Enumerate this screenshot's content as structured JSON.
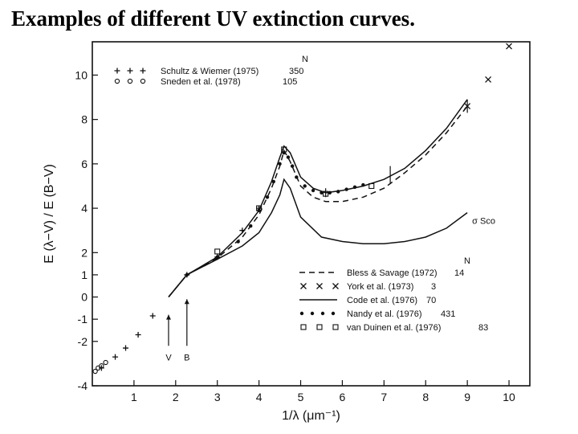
{
  "slide": {
    "title": "Examples of different UV extinction curves."
  },
  "chart_data": {
    "type": "line",
    "xlabel": "1/λ (μm⁻¹)",
    "ylabel": "E (λ−V) / E (B−V)",
    "xlim": [
      0,
      10.5
    ],
    "ylim": [
      -4,
      11.5
    ],
    "x_ticks": [
      1,
      2,
      3,
      4,
      5,
      6,
      7,
      8,
      9,
      10
    ],
    "y_ticks": [
      -4,
      -2,
      -1,
      0,
      1,
      2,
      4,
      6,
      8,
      10
    ],
    "legend_top": {
      "header": "N",
      "entries": [
        {
          "marker": "+ + +",
          "label": "Schultz & Wiemer (1975)",
          "n": "350"
        },
        {
          "marker": "o o o",
          "label": "Sneden et al. (1978)",
          "n": "105"
        }
      ]
    },
    "legend_bottom": {
      "header": "N",
      "entries": [
        {
          "marker": "dashed",
          "label": "Bless & Savage (1972)",
          "n": "14"
        },
        {
          "marker": "x x x",
          "label": "York et al. (1973)",
          "n": "3"
        },
        {
          "marker": "solid",
          "label": "Code et al. (1976)",
          "n": "70"
        },
        {
          "marker": "dots",
          "label": "Nandy et al. (1976)",
          "n": "431"
        },
        {
          "marker": "squares",
          "label": "van Duinen et al. (1976)",
          "n": "83"
        }
      ]
    },
    "annotations": {
      "sigma_sco": "σ Sco",
      "v_label": "V",
      "b_label": "B",
      "v_x": 1.83,
      "b_x": 2.27
    },
    "series": [
      {
        "name": "Bless & Savage (1972)",
        "style": "dashed",
        "x": [
          1.83,
          2.27,
          3.0,
          3.6,
          4.0,
          4.3,
          4.5,
          4.6,
          4.75,
          5.0,
          5.3,
          5.6,
          6.0,
          6.5,
          7.0,
          7.5,
          8.0,
          8.5,
          9.0
        ],
        "y": [
          0,
          1.0,
          1.75,
          2.7,
          3.7,
          4.9,
          5.9,
          6.6,
          6.1,
          5.0,
          4.5,
          4.3,
          4.3,
          4.5,
          4.9,
          5.6,
          6.4,
          7.4,
          8.6
        ]
      },
      {
        "name": "Code et al. (1976)",
        "style": "solid",
        "x": [
          1.83,
          2.27,
          3.0,
          3.6,
          4.0,
          4.3,
          4.5,
          4.6,
          4.75,
          5.0,
          5.3,
          5.6,
          6.0,
          6.5,
          7.0,
          7.5,
          8.0,
          8.5,
          9.0
        ],
        "y": [
          0,
          1.0,
          1.8,
          2.9,
          3.9,
          5.2,
          6.3,
          6.8,
          6.5,
          5.4,
          4.9,
          4.7,
          4.8,
          5.0,
          5.3,
          5.8,
          6.6,
          7.6,
          8.9
        ]
      },
      {
        "name": "σ Sco",
        "style": "solid",
        "x": [
          1.83,
          2.27,
          3.0,
          3.6,
          4.0,
          4.3,
          4.5,
          4.6,
          4.75,
          5.0,
          5.5,
          6.0,
          6.5,
          7.0,
          7.5,
          8.0,
          8.5,
          9.0
        ],
        "y": [
          0,
          1.0,
          1.7,
          2.3,
          2.9,
          3.8,
          4.6,
          5.3,
          4.9,
          3.6,
          2.7,
          2.5,
          2.4,
          2.4,
          2.5,
          2.7,
          3.1,
          3.8
        ]
      },
      {
        "name": "Schultz & Wiemer (1975)",
        "style": "plus",
        "x": [
          0.22,
          0.55,
          0.8,
          1.1,
          1.45,
          2.27,
          3.0,
          3.6,
          4.0
        ],
        "y": [
          -3.2,
          -2.7,
          -2.3,
          -1.7,
          -0.85,
          1.0,
          1.8,
          3.0,
          4.0
        ]
      },
      {
        "name": "Sneden et al. (1978)",
        "style": "circle",
        "x": [
          0.07,
          0.14,
          0.22,
          0.32
        ],
        "y": [
          -3.35,
          -3.2,
          -3.1,
          -2.95
        ]
      },
      {
        "name": "Nandy et al. (1976)",
        "style": "dot",
        "x": [
          2.27,
          3.0,
          3.5,
          3.8,
          4.0,
          4.2,
          4.35,
          4.5,
          4.6,
          4.7,
          4.8,
          4.9,
          5.1,
          5.3,
          5.5,
          5.7,
          5.9,
          6.1,
          6.3,
          6.5
        ],
        "y": [
          1.0,
          1.8,
          2.5,
          3.2,
          3.9,
          4.5,
          5.2,
          6.0,
          6.5,
          6.3,
          5.9,
          5.4,
          5.0,
          4.8,
          4.7,
          4.7,
          4.75,
          4.85,
          4.95,
          5.05
        ]
      },
      {
        "name": "van Duinen et al. (1976)",
        "style": "square",
        "x": [
          3.0,
          4.0,
          4.6,
          5.6,
          6.7
        ],
        "y": [
          2.05,
          4.0,
          6.65,
          4.65,
          5.0
        ]
      },
      {
        "name": "York et al. (1973)",
        "style": "cross",
        "x": [
          9.0,
          9.5,
          10.0
        ],
        "y": [
          8.6,
          9.8,
          11.3
        ]
      }
    ],
    "error_bars": [
      {
        "x": 5.6,
        "y": 4.7,
        "lo": 4.5,
        "hi": 4.9
      },
      {
        "x": 7.15,
        "y": 5.5,
        "lo": 5.1,
        "hi": 5.9
      },
      {
        "x": 9.0,
        "y": 8.6,
        "lo": 8.3,
        "hi": 8.9
      }
    ]
  }
}
